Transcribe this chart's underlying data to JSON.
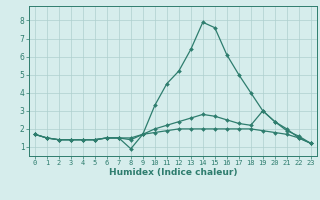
{
  "x": [
    0,
    1,
    2,
    3,
    4,
    5,
    6,
    7,
    8,
    9,
    10,
    11,
    12,
    13,
    14,
    15,
    16,
    17,
    18,
    19,
    20,
    21,
    22,
    23
  ],
  "line1": [
    1.7,
    1.5,
    1.4,
    1.4,
    1.4,
    1.4,
    1.5,
    1.5,
    1.4,
    1.7,
    1.8,
    1.9,
    2.0,
    2.0,
    2.0,
    2.0,
    2.0,
    2.0,
    2.0,
    1.9,
    1.8,
    1.7,
    1.5,
    1.2
  ],
  "line2": [
    1.7,
    1.5,
    1.4,
    1.4,
    1.4,
    1.4,
    1.5,
    1.5,
    1.5,
    1.7,
    2.0,
    2.2,
    2.4,
    2.6,
    2.8,
    2.7,
    2.5,
    2.3,
    2.2,
    3.0,
    2.4,
    1.9,
    1.6,
    1.2
  ],
  "line3": [
    1.7,
    1.5,
    1.4,
    1.4,
    1.4,
    1.4,
    1.5,
    1.5,
    0.9,
    1.7,
    3.3,
    4.5,
    5.2,
    6.4,
    7.9,
    7.6,
    6.1,
    5.0,
    4.0,
    3.0,
    2.4,
    2.0,
    1.5,
    1.2
  ],
  "bg_color": "#d6edec",
  "line_color": "#2e7d6e",
  "xlabel": "Humidex (Indice chaleur)",
  "ylim_min": 0.5,
  "ylim_max": 8.8,
  "xlim_min": -0.5,
  "xlim_max": 23.5,
  "yticks": [
    1,
    2,
    3,
    4,
    5,
    6,
    7,
    8
  ],
  "xticks": [
    0,
    1,
    2,
    3,
    4,
    5,
    6,
    7,
    8,
    9,
    10,
    11,
    12,
    13,
    14,
    15,
    16,
    17,
    18,
    19,
    20,
    21,
    22,
    23
  ],
  "grid_color": "#aed0ce",
  "marker": "D",
  "markersize": 2.0,
  "linewidth": 0.9,
  "tick_fontsize": 5.0,
  "xlabel_fontsize": 6.5
}
